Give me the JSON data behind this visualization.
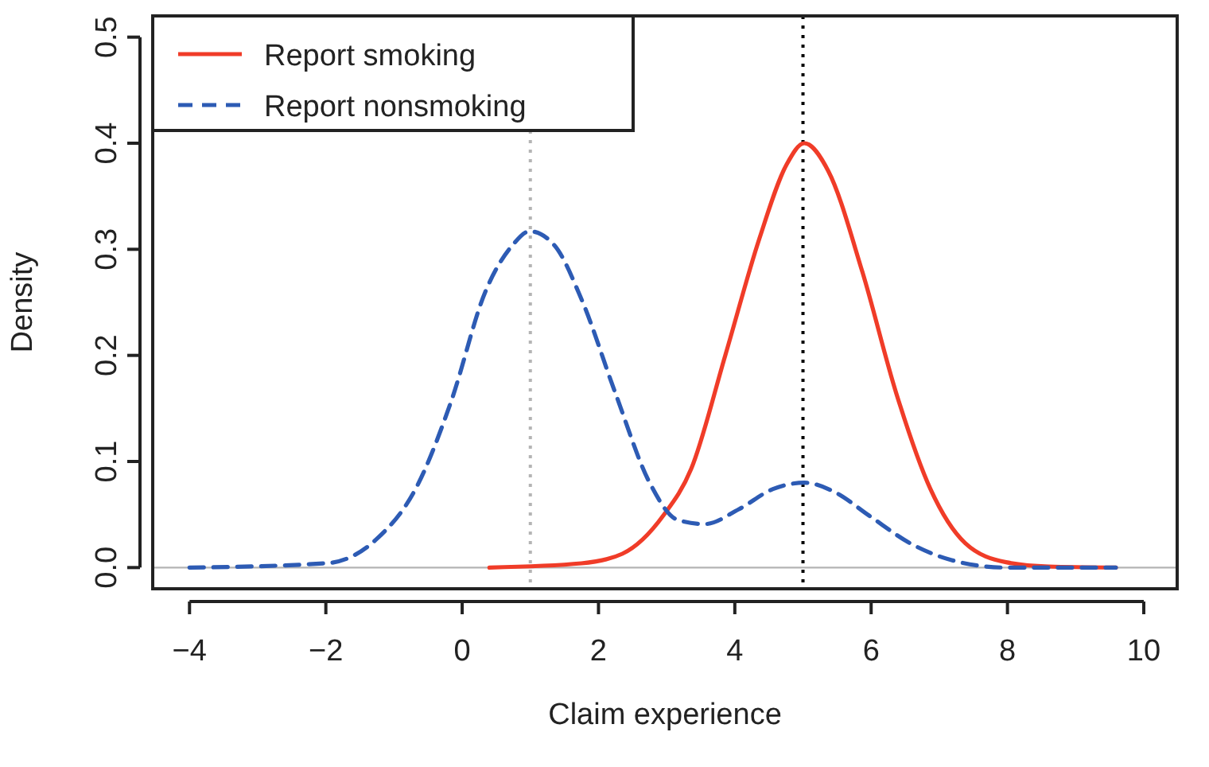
{
  "chart_data": {
    "type": "line",
    "xlabel": "Claim experience",
    "ylabel": "Density",
    "xlim": [
      -4.54,
      10.49
    ],
    "ylim": [
      -0.02,
      0.52
    ],
    "xticks": [
      {
        "value": -4,
        "label": "−4"
      },
      {
        "value": -2,
        "label": "−2"
      },
      0,
      2,
      4,
      6,
      8,
      10
    ],
    "yticks": [
      {
        "value": 0,
        "label": "0.0"
      },
      0.1,
      0.2,
      0.3,
      0.4,
      0.5
    ],
    "grid": false,
    "legend": "top left",
    "marker": "none",
    "series": [
      {
        "name": "Report smoking",
        "color": "#f03c28",
        "line_style": "solid",
        "x": [
          0.4,
          1.75,
          2.35,
          2.95,
          3.36,
          3.86,
          4.36,
          4.76,
          5.02,
          5.37,
          5.87,
          6.37,
          6.87,
          7.38,
          7.98,
          8.6,
          9.59
        ],
        "values": [
          0,
          0.004,
          0.013,
          0.049,
          0.093,
          0.2,
          0.31,
          0.38,
          0.4,
          0.374,
          0.279,
          0.164,
          0.074,
          0.023,
          0.005,
          0.001,
          0
        ]
      },
      {
        "name": "Report nonsmoking",
        "color": "#2d5bb4",
        "line_style": "dashed",
        "x": [
          -4,
          -2,
          -1.27,
          -0.66,
          -0.16,
          0.34,
          0.74,
          0.99,
          1.35,
          1.75,
          2.25,
          2.75,
          3.16,
          3.56,
          4.06,
          4.56,
          5.02,
          5.47,
          5.97,
          6.57,
          7.18,
          7.98,
          9.59
        ],
        "values": [
          0,
          0.004,
          0.026,
          0.077,
          0.157,
          0.26,
          0.304,
          0.317,
          0.304,
          0.253,
          0.164,
          0.08,
          0.045,
          0.041,
          0.055,
          0.074,
          0.08,
          0.071,
          0.049,
          0.023,
          0.007,
          0,
          0
        ]
      }
    ],
    "ref_lines": [
      {
        "axis": "y",
        "value": 0,
        "color": "#b4b4b4",
        "line_style": "solid"
      },
      {
        "axis": "x",
        "value": 1,
        "color": "#b4b4b4",
        "line_style": "dotted"
      },
      {
        "axis": "x",
        "value": 5,
        "color": "#000000",
        "line_style": "dotted"
      }
    ]
  }
}
